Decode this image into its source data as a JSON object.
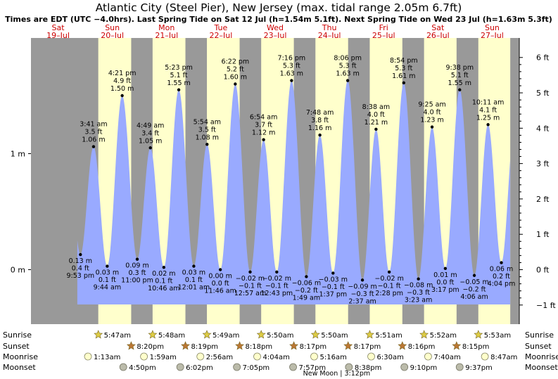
{
  "title": "Atlantic City (Steel Pier), New Jersey (max. tidal range 2.05m 6.7ft)",
  "subtitle": "Times are EDT (UTC −4.0hrs). Last Spring Tide on Sat 12 Jul (h=1.54m 5.1ft). Next Spring Tide on Wed 23 Jul (h=1.63m 5.3ft)",
  "colors": {
    "night": "#999999",
    "day": "#ffffcc",
    "tide_fill": "#99aaff",
    "day_header": "#cc0000",
    "sun_marker": "#ddcc44",
    "sunset_marker": "#bb7733",
    "moonrise_marker": "#ffffcc",
    "moonset_marker": "#bbbbaa"
  },
  "chart_data": {
    "type": "area",
    "x_unit": "hours since Sat 19 Jul 00:00 EDT",
    "xlim": [
      0,
      216
    ],
    "ylim_m": [
      -0.4,
      1.72
    ],
    "left_axis": {
      "ticks": [
        {
          "value": 1,
          "label": "1 m"
        },
        {
          "value": 0,
          "label": "0 m"
        }
      ]
    },
    "right_axis": {
      "ticks": [
        {
          "value": 1.8288,
          "label": "6 ft"
        },
        {
          "value": 1.524,
          "label": "5 ft"
        },
        {
          "value": 1.2192,
          "label": "4 ft"
        },
        {
          "value": 0.9144,
          "label": "3 ft"
        },
        {
          "value": 0.6096,
          "label": "2 ft"
        },
        {
          "value": 0.3048,
          "label": "1 ft"
        },
        {
          "value": 0,
          "label": "0 ft"
        },
        {
          "value": -0.3048,
          "label": "−1 ft"
        }
      ]
    },
    "days": [
      {
        "dow": "Sat",
        "date": "19–Jul",
        "center_h": 12
      },
      {
        "dow": "Sun",
        "date": "20–Jul",
        "center_h": 36
      },
      {
        "dow": "Mon",
        "date": "21–Jul",
        "center_h": 60
      },
      {
        "dow": "Tue",
        "date": "22–Jul",
        "center_h": 84
      },
      {
        "dow": "Wed",
        "date": "23–Jul",
        "center_h": 108
      },
      {
        "dow": "Thu",
        "date": "24–Jul",
        "center_h": 132
      },
      {
        "dow": "Fri",
        "date": "25–Jul",
        "center_h": 156
      },
      {
        "dow": "Sat",
        "date": "26–Jul",
        "center_h": 180
      },
      {
        "dow": "Sun",
        "date": "27–Jul",
        "center_h": 204
      }
    ],
    "daylight": [
      [
        29.78,
        44.33
      ],
      [
        53.8,
        68.32
      ],
      [
        77.82,
        92.3
      ],
      [
        101.83,
        116.28
      ],
      [
        125.83,
        140.28
      ],
      [
        149.85,
        164.27
      ],
      [
        173.87,
        188.25
      ],
      [
        197.88,
        212
      ]
    ],
    "tides": [
      {
        "t": 21.88,
        "h": 0.13,
        "time": "9:53 pm",
        "ft": "0.4 ft",
        "m": "0.13 m",
        "type": "low"
      },
      {
        "t": 27.68,
        "h": 1.06,
        "time": "3:41 am",
        "ft": "3.5 ft",
        "m": "1.06 m",
        "type": "high"
      },
      {
        "t": 33.73,
        "h": 0.03,
        "time": "9:44 am",
        "ft": "0.1 ft",
        "m": "0.03 m",
        "type": "low"
      },
      {
        "t": 40.35,
        "h": 1.5,
        "time": "4:21 pm",
        "ft": "4.9 ft",
        "m": "1.50 m",
        "type": "high"
      },
      {
        "t": 47.0,
        "h": 0.09,
        "time": "11:00 pm",
        "ft": "0.3 ft",
        "m": "0.09 m",
        "type": "low"
      },
      {
        "t": 52.82,
        "h": 1.05,
        "time": "4:49 am",
        "ft": "3.4 ft",
        "m": "1.05 m",
        "type": "high"
      },
      {
        "t": 58.77,
        "h": 0.02,
        "time": "10:46 am",
        "ft": "0.1 ft",
        "m": "0.02 m",
        "type": "low"
      },
      {
        "t": 65.38,
        "h": 1.55,
        "time": "5:23 pm",
        "ft": "5.1 ft",
        "m": "1.55 m",
        "type": "high"
      },
      {
        "t": 72.02,
        "h": 0.03,
        "time": "12:01 am",
        "ft": "0.1 ft",
        "m": "0.03 m",
        "type": "low"
      },
      {
        "t": 77.9,
        "h": 1.08,
        "time": "5:54 am",
        "ft": "3.5 ft",
        "m": "1.08 m",
        "type": "high"
      },
      {
        "t": 83.77,
        "h": 0.0,
        "time": "11:46 am",
        "ft": "0.0 ft",
        "m": "0.00 m",
        "type": "low"
      },
      {
        "t": 90.37,
        "h": 1.6,
        "time": "6:22 pm",
        "ft": "5.2 ft",
        "m": "1.60 m",
        "type": "high"
      },
      {
        "t": 96.95,
        "h": -0.02,
        "time": "12:57 am",
        "ft": "−0.1 ft",
        "m": "−0.02 m",
        "type": "low"
      },
      {
        "t": 102.9,
        "h": 1.12,
        "time": "6:54 am",
        "ft": "3.7 ft",
        "m": "1.12 m",
        "type": "high"
      },
      {
        "t": 108.72,
        "h": -0.02,
        "time": "12:43 pm",
        "ft": "−0.1 ft",
        "m": "−0.02 m",
        "type": "low"
      },
      {
        "t": 115.27,
        "h": 1.63,
        "time": "7:16 pm",
        "ft": "5.3 ft",
        "m": "1.63 m",
        "type": "high"
      },
      {
        "t": 121.82,
        "h": -0.06,
        "time": "1:49 am",
        "ft": "−0.2 ft",
        "m": "−0.06 m",
        "type": "low"
      },
      {
        "t": 127.8,
        "h": 1.16,
        "time": "7:48 am",
        "ft": "3.8 ft",
        "m": "1.16 m",
        "type": "high"
      },
      {
        "t": 133.62,
        "h": -0.03,
        "time": "1:37 pm",
        "ft": "−0.1 ft",
        "m": "−0.03 m",
        "type": "low"
      },
      {
        "t": 140.1,
        "h": 1.63,
        "time": "8:06 pm",
        "ft": "5.3 ft",
        "m": "1.63 m",
        "type": "high"
      },
      {
        "t": 146.62,
        "h": -0.09,
        "time": "2:37 am",
        "ft": "−0.3 ft",
        "m": "−0.09 m",
        "type": "low"
      },
      {
        "t": 152.63,
        "h": 1.21,
        "time": "8:38 am",
        "ft": "4.0 ft",
        "m": "1.21 m",
        "type": "high"
      },
      {
        "t": 158.47,
        "h": -0.02,
        "time": "2:28 pm",
        "ft": "−0.1 ft",
        "m": "−0.02 m",
        "type": "low"
      },
      {
        "t": 164.9,
        "h": 1.61,
        "time": "8:54 pm",
        "ft": "5.3 ft",
        "m": "1.61 m",
        "type": "high"
      },
      {
        "t": 171.38,
        "h": -0.08,
        "time": "3:23 am",
        "ft": "−0.3 ft",
        "m": "−0.08 m",
        "type": "low"
      },
      {
        "t": 177.42,
        "h": 1.23,
        "time": "9:25 am",
        "ft": "4.0 ft",
        "m": "1.23 m",
        "type": "high"
      },
      {
        "t": 183.28,
        "h": 0.01,
        "time": "3:17 pm",
        "ft": "0.0 ft",
        "m": "0.01 m",
        "type": "low"
      },
      {
        "t": 189.63,
        "h": 1.55,
        "time": "9:38 pm",
        "ft": "5.1 ft",
        "m": "1.55 m",
        "type": "high"
      },
      {
        "t": 196.1,
        "h": -0.05,
        "time": "4:06 am",
        "ft": "−0.2 ft",
        "m": "−0.05 m",
        "type": "low"
      },
      {
        "t": 202.18,
        "h": 1.25,
        "time": "10:11 am",
        "ft": "4.1 ft",
        "m": "1.25 m",
        "type": "high"
      },
      {
        "t": 208.07,
        "h": 0.06,
        "time": "4:04 pm",
        "ft": "0.2 ft",
        "m": "0.06 m",
        "type": "low"
      }
    ],
    "rows": [
      {
        "label": "Sunrise",
        "kind": "sun",
        "events": [
          {
            "t": 29.78,
            "text": "5:47am"
          },
          {
            "t": 53.8,
            "text": "5:48am"
          },
          {
            "t": 77.82,
            "text": "5:49am"
          },
          {
            "t": 101.83,
            "text": "5:50am"
          },
          {
            "t": 125.83,
            "text": "5:50am"
          },
          {
            "t": 149.85,
            "text": "5:51am"
          },
          {
            "t": 173.87,
            "text": "5:52am"
          },
          {
            "t": 197.88,
            "text": "5:53am"
          }
        ]
      },
      {
        "label": "Sunset",
        "kind": "sunset",
        "events": [
          {
            "t": 44.33,
            "text": "8:20pm"
          },
          {
            "t": 68.32,
            "text": "8:19pm"
          },
          {
            "t": 92.3,
            "text": "8:18pm"
          },
          {
            "t": 116.28,
            "text": "8:17pm"
          },
          {
            "t": 140.28,
            "text": "8:17pm"
          },
          {
            "t": 164.27,
            "text": "8:16pm"
          },
          {
            "t": 188.25,
            "text": "8:15pm"
          }
        ]
      },
      {
        "label": "Moonrise",
        "kind": "moonrise",
        "events": [
          {
            "t": 25.22,
            "text": "1:13am"
          },
          {
            "t": 49.98,
            "text": "1:59am"
          },
          {
            "t": 74.93,
            "text": "2:56am"
          },
          {
            "t": 100.07,
            "text": "4:04am"
          },
          {
            "t": 125.27,
            "text": "5:16am"
          },
          {
            "t": 150.5,
            "text": "6:30am"
          },
          {
            "t": 175.67,
            "text": "7:40am"
          },
          {
            "t": 200.78,
            "text": "8:47am"
          }
        ]
      },
      {
        "label": "Moonset",
        "kind": "moonset",
        "events": [
          {
            "t": 40.83,
            "text": "4:50pm"
          },
          {
            "t": 66.03,
            "text": "6:02pm"
          },
          {
            "t": 91.08,
            "text": "7:05pm"
          },
          {
            "t": 115.95,
            "text": "7:57pm"
          },
          {
            "t": 140.63,
            "text": "8:38pm"
          },
          {
            "t": 165.17,
            "text": "9:10pm"
          },
          {
            "t": 189.62,
            "text": "9:37pm"
          }
        ]
      }
    ],
    "moon_phase": {
      "text": "New Moon | 3:12pm",
      "t": 135.2
    }
  }
}
